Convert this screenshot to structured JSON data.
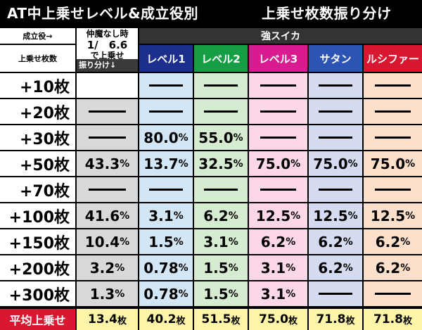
{
  "title": {
    "left": "AT中上乗せレベル&成立役別",
    "right": "上乗せ枚数振り分け"
  },
  "header": {
    "role_label": "成立役→",
    "count_label": "上乗せ枚数",
    "none_line1": "仲魔なし時",
    "none_line2": "1/　6.6",
    "none_line3": "で上乗せ",
    "none_sub": "振り分け↓",
    "strong_suika": "強スイカ",
    "columns": [
      {
        "label": "レベル1",
        "bg": "#1c2f8c"
      },
      {
        "label": "レベル2",
        "bg": "#169e44"
      },
      {
        "label": "レベル3",
        "bg": "#d81b8f"
      },
      {
        "label": "サタン",
        "bg": "#2b54b5"
      },
      {
        "label": "ルシファー",
        "bg": "#d81830"
      }
    ]
  },
  "colors": {
    "none_bg": "#d9d9d9",
    "col_bg": [
      "#d2e6f6",
      "#d6ecd0",
      "#fbd7e7",
      "#d5dcf2",
      "#fde0cc"
    ]
  },
  "rows": [
    {
      "label": "+10枚",
      "none": "",
      "vals": [
        "",
        "",
        "",
        "",
        ""
      ]
    },
    {
      "label": "+20枚",
      "none": "-",
      "vals": [
        "",
        "",
        "",
        "",
        ""
      ]
    },
    {
      "label": "+30枚",
      "none": "-",
      "vals": [
        "80.0",
        "55.0",
        "",
        "",
        ""
      ]
    },
    {
      "label": "+50枚",
      "none": "43.3",
      "vals": [
        "13.7",
        "32.5",
        "75.0",
        "75.0",
        "75.0"
      ]
    },
    {
      "label": "+70枚",
      "none": "-",
      "vals": [
        "",
        "",
        "",
        "",
        ""
      ]
    },
    {
      "label": "+100枚",
      "none": "41.6",
      "vals": [
        "3.1",
        "6.2",
        "12.5",
        "12.5",
        "12.5"
      ]
    },
    {
      "label": "+150枚",
      "none": "10.4",
      "vals": [
        "1.5",
        "3.1",
        "6.2",
        "6.2",
        "6.2"
      ]
    },
    {
      "label": "+200枚",
      "none": "3.2",
      "vals": [
        "0.78",
        "1.5",
        "3.1",
        "6.2",
        "6.2"
      ]
    },
    {
      "label": "+300枚",
      "none": "1.3",
      "vals": [
        "0.78",
        "1.5",
        "3.1",
        "",
        ""
      ]
    }
  ],
  "percent_unit": "%",
  "average": {
    "label": "平均上乗せ",
    "unit": "枚",
    "none": "13.4",
    "vals": [
      "40.2",
      "51.5",
      "75.0",
      "71.8",
      "71.8"
    ]
  }
}
